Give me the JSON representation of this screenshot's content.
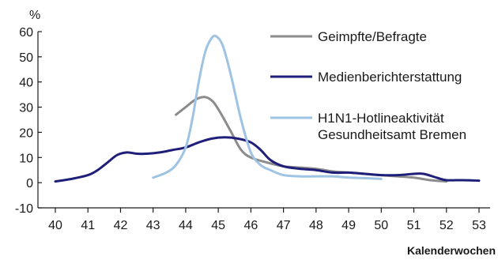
{
  "chart_data": {
    "type": "line",
    "ylabel": "%",
    "xlabel": "Kalenderwochen",
    "xlim": [
      40,
      53
    ],
    "ylim": [
      -10,
      60
    ],
    "x_ticks": [
      "40",
      "41",
      "42",
      "43",
      "44",
      "45",
      "46",
      "47",
      "48",
      "49",
      "50",
      "51",
      "52",
      "53"
    ],
    "y_ticks": [
      "-10",
      "0",
      "10",
      "20",
      "30",
      "40",
      "50",
      "60"
    ],
    "grid": false,
    "legend_position": "right",
    "series": [
      {
        "name": "Geimpfte/Befragte",
        "color": "#8c8c8c",
        "points": [
          [
            43.7,
            27
          ],
          [
            44.0,
            30
          ],
          [
            44.3,
            33
          ],
          [
            44.6,
            34
          ],
          [
            44.85,
            32
          ],
          [
            45.1,
            27
          ],
          [
            45.4,
            20
          ],
          [
            45.7,
            13
          ],
          [
            46.0,
            10
          ],
          [
            46.5,
            8
          ],
          [
            47.0,
            6.5
          ],
          [
            47.5,
            6
          ],
          [
            48.0,
            5.5
          ],
          [
            48.5,
            4.5
          ],
          [
            49.0,
            4
          ],
          [
            50.0,
            3
          ],
          [
            50.5,
            2.5
          ],
          [
            51.0,
            2
          ],
          [
            51.5,
            1
          ],
          [
            52.0,
            0.5
          ]
        ]
      },
      {
        "name": "Medienberichterstattung",
        "color": "#1f1f7a",
        "points": [
          [
            40.0,
            0.5
          ],
          [
            40.5,
            1.5
          ],
          [
            41.0,
            3
          ],
          [
            41.3,
            5
          ],
          [
            41.6,
            8
          ],
          [
            41.9,
            11
          ],
          [
            42.2,
            12
          ],
          [
            42.5,
            11.5
          ],
          [
            42.8,
            11.5
          ],
          [
            43.2,
            12
          ],
          [
            43.6,
            13
          ],
          [
            44.0,
            14
          ],
          [
            44.4,
            16
          ],
          [
            44.8,
            17.5
          ],
          [
            45.2,
            18
          ],
          [
            45.6,
            17.5
          ],
          [
            46.0,
            16
          ],
          [
            46.3,
            13
          ],
          [
            46.6,
            9
          ],
          [
            47.0,
            6.5
          ],
          [
            47.5,
            5.5
          ],
          [
            48.0,
            5
          ],
          [
            48.5,
            4
          ],
          [
            49.0,
            4
          ],
          [
            49.5,
            3.5
          ],
          [
            50.0,
            3
          ],
          [
            50.5,
            3
          ],
          [
            51.0,
            3.5
          ],
          [
            51.3,
            3.5
          ],
          [
            51.7,
            2
          ],
          [
            52.0,
            1
          ],
          [
            52.5,
            1
          ],
          [
            53.0,
            0.8
          ]
        ]
      },
      {
        "name": "H1N1-Hotlineaktivität Gesundheitsamt Bremen",
        "legend_lines": [
          "H1N1-Hotlineaktivität",
          "Gesundheitsamt Bremen"
        ],
        "color": "#9ec3e3",
        "points": [
          [
            43.0,
            2
          ],
          [
            43.4,
            4
          ],
          [
            43.7,
            7
          ],
          [
            44.0,
            14
          ],
          [
            44.2,
            25
          ],
          [
            44.4,
            40
          ],
          [
            44.6,
            52
          ],
          [
            44.8,
            57.5
          ],
          [
            44.95,
            58
          ],
          [
            45.15,
            54
          ],
          [
            45.4,
            42
          ],
          [
            45.7,
            25
          ],
          [
            46.0,
            12
          ],
          [
            46.3,
            7
          ],
          [
            46.6,
            5
          ],
          [
            47.0,
            3
          ],
          [
            47.5,
            2.5
          ],
          [
            48.0,
            2.5
          ],
          [
            48.5,
            2.5
          ],
          [
            49.0,
            2
          ],
          [
            49.5,
            1.8
          ],
          [
            50.0,
            1.5
          ]
        ]
      }
    ]
  }
}
